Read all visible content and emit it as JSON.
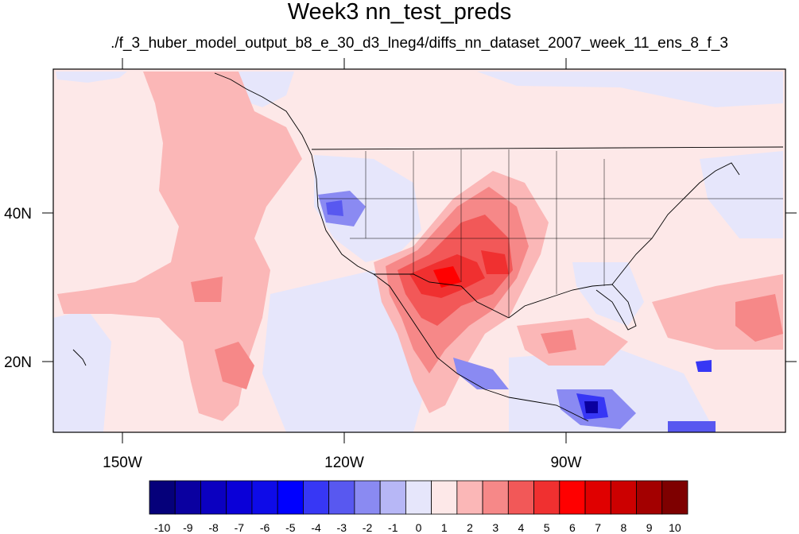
{
  "title": "Week3 nn_test_preds",
  "subtitle": "./f_3_huber_model_output_b8_e_30_d3_lneg4/diffs_nn_dataset_2007_week_11_ens_8_f_3",
  "map": {
    "lon_range": [
      -160,
      -58
    ],
    "lat_range": [
      10,
      59
    ],
    "lon_ticks": [
      {
        "value": -150,
        "label": "150W"
      },
      {
        "value": -120,
        "label": "120W"
      },
      {
        "value": -90,
        "label": "90W"
      }
    ],
    "lat_ticks": [
      {
        "value": 40,
        "label": "40N"
      },
      {
        "value": 20,
        "label": "20N"
      }
    ]
  },
  "colorbar": {
    "labels": [
      "-10",
      "-9",
      "-8",
      "-7",
      "-6",
      "-5",
      "-4",
      "-3",
      "-2",
      "-1",
      "0",
      "1",
      "2",
      "3",
      "4",
      "5",
      "6",
      "7",
      "8",
      "9",
      "10"
    ],
    "colors": [
      "#05007a",
      "#0a00a0",
      "#0b00c0",
      "#0a00d8",
      "#0e0be8",
      "#0000ff",
      "#3737f5",
      "#5858f0",
      "#8a8af2",
      "#b7b7f6",
      "#e6e6fb",
      "#fde8e8",
      "#fbb7b7",
      "#f68888",
      "#f25858",
      "#f03030",
      "#ff0000",
      "#e00000",
      "#cc0000",
      "#a30000",
      "#7e0000"
    ]
  }
}
